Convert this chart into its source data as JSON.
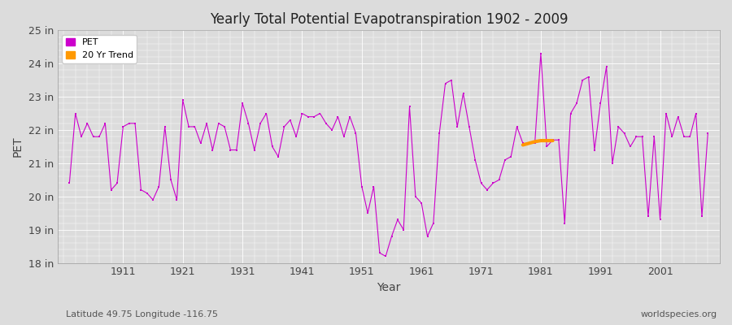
{
  "title": "Yearly Total Potential Evapotranspiration 1902 - 2009",
  "xlabel": "Year",
  "ylabel": "PET",
  "subtitle_left": "Latitude 49.75 Longitude -116.75",
  "subtitle_right": "worldspecies.org",
  "ylim": [
    18,
    25
  ],
  "yticks": [
    18,
    19,
    20,
    21,
    22,
    23,
    24,
    25
  ],
  "ytick_labels": [
    "18 in",
    "19 in",
    "20 in",
    "21 in",
    "22 in",
    "23 in",
    "24 in",
    "25 in"
  ],
  "pet_color": "#cc00cc",
  "trend_color": "#ff9900",
  "bg_color": "#dcdcdc",
  "years": [
    1902,
    1903,
    1904,
    1905,
    1906,
    1907,
    1908,
    1909,
    1910,
    1911,
    1912,
    1913,
    1914,
    1915,
    1916,
    1917,
    1918,
    1919,
    1920,
    1921,
    1922,
    1923,
    1924,
    1925,
    1926,
    1927,
    1928,
    1929,
    1930,
    1931,
    1932,
    1933,
    1934,
    1935,
    1936,
    1937,
    1938,
    1939,
    1940,
    1941,
    1942,
    1943,
    1944,
    1945,
    1946,
    1947,
    1948,
    1949,
    1950,
    1951,
    1952,
    1953,
    1954,
    1955,
    1956,
    1957,
    1958,
    1959,
    1960,
    1961,
    1962,
    1963,
    1964,
    1965,
    1966,
    1967,
    1968,
    1969,
    1970,
    1971,
    1972,
    1973,
    1974,
    1975,
    1976,
    1977,
    1978,
    1979,
    1980,
    1981,
    1982,
    1983,
    1984,
    1985,
    1986,
    1987,
    1988,
    1989,
    1990,
    1991,
    1992,
    1993,
    1994,
    1995,
    1996,
    1997,
    1998,
    1999,
    2000,
    2001,
    2002,
    2003,
    2004,
    2005,
    2006,
    2007,
    2008,
    2009
  ],
  "pet_values": [
    20.4,
    22.5,
    21.8,
    22.2,
    21.8,
    21.8,
    22.2,
    20.2,
    20.4,
    22.1,
    22.2,
    22.2,
    20.2,
    20.1,
    19.9,
    20.3,
    22.1,
    20.5,
    19.9,
    22.9,
    22.1,
    22.1,
    21.6,
    22.2,
    21.4,
    22.2,
    22.1,
    21.4,
    21.4,
    22.8,
    22.2,
    21.4,
    22.2,
    22.5,
    21.5,
    21.2,
    22.1,
    22.3,
    21.8,
    22.5,
    22.4,
    22.4,
    22.5,
    22.2,
    22.0,
    22.4,
    21.8,
    22.4,
    21.9,
    20.3,
    19.5,
    20.3,
    18.3,
    18.2,
    18.8,
    19.3,
    19.0,
    22.7,
    20.0,
    19.8,
    18.8,
    19.2,
    21.9,
    23.4,
    23.5,
    22.1,
    23.1,
    22.1,
    21.1,
    20.4,
    20.2,
    20.4,
    20.5,
    21.1,
    21.2,
    22.1,
    21.6,
    21.6,
    21.6,
    24.3,
    21.5,
    21.7,
    21.7,
    19.2,
    22.5,
    22.8,
    23.5,
    23.6,
    21.4,
    22.8,
    23.9,
    21.0,
    22.1,
    21.9,
    21.5,
    21.8,
    21.8,
    19.4,
    21.8,
    19.3,
    22.5,
    21.8,
    22.4,
    21.8,
    21.8,
    22.5,
    19.4,
    21.9
  ],
  "trend_years": [
    1978,
    1979,
    1980,
    1981,
    1982,
    1983
  ],
  "trend_values": [
    21.55,
    21.6,
    21.65,
    21.68,
    21.68,
    21.68
  ],
  "xticks": [
    1911,
    1921,
    1931,
    1941,
    1951,
    1961,
    1971,
    1981,
    1991,
    2001
  ],
  "xlim": [
    1900,
    2011
  ],
  "grid_color": "#ffffff",
  "legend_loc": "upper left"
}
